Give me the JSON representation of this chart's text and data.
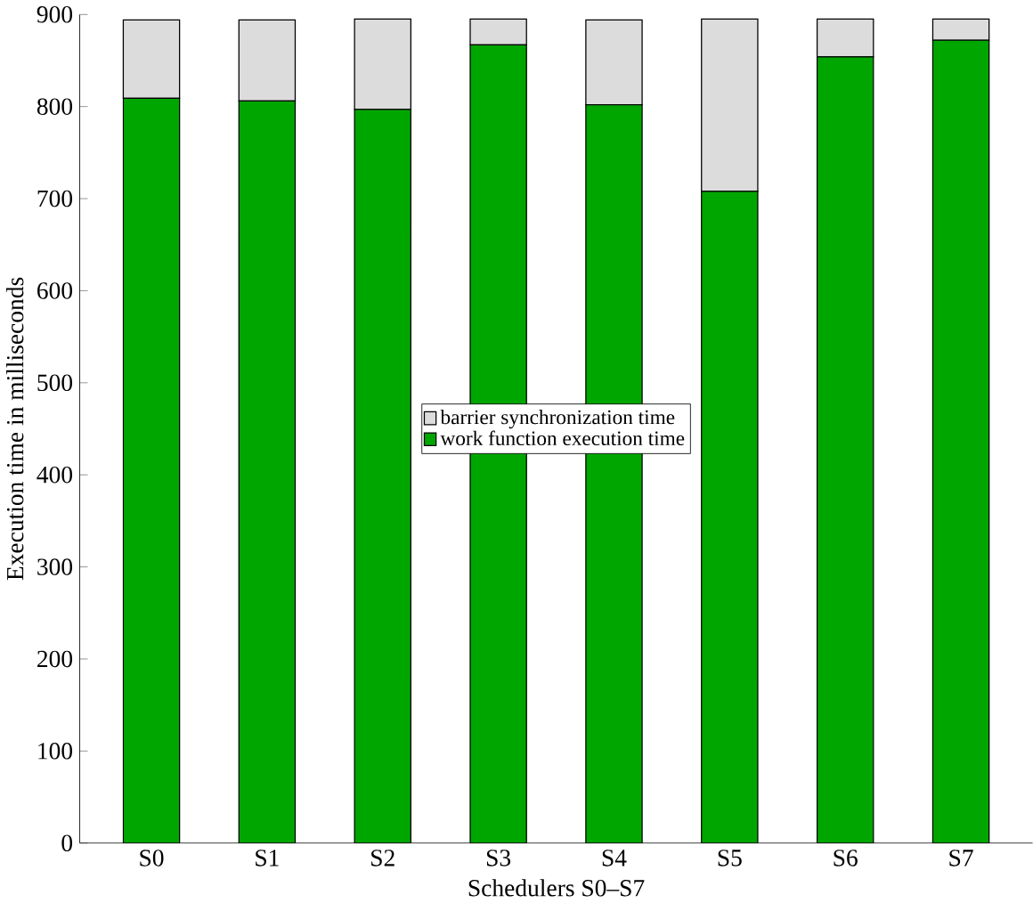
{
  "chart_data": {
    "type": "bar",
    "stacked": true,
    "xlabel": "Schedulers S0–S7",
    "ylabel": "Execution time in milliseconds",
    "categories": [
      "S0",
      "S1",
      "S2",
      "S3",
      "S4",
      "S5",
      "S6",
      "S7"
    ],
    "series": [
      {
        "name": "work function execution time",
        "color": "#00a600",
        "values": [
          809,
          806,
          797,
          867,
          802,
          708,
          854,
          872
        ]
      },
      {
        "name": "barrier synchronization time",
        "color": "#dcdcdc",
        "values": [
          85,
          88,
          98,
          28,
          92,
          187,
          41,
          23
        ]
      }
    ],
    "ylim": [
      0,
      900
    ],
    "yticks": [
      0,
      100,
      200,
      300,
      400,
      500,
      600,
      700,
      800,
      900
    ],
    "legend": "center",
    "grid": false
  }
}
